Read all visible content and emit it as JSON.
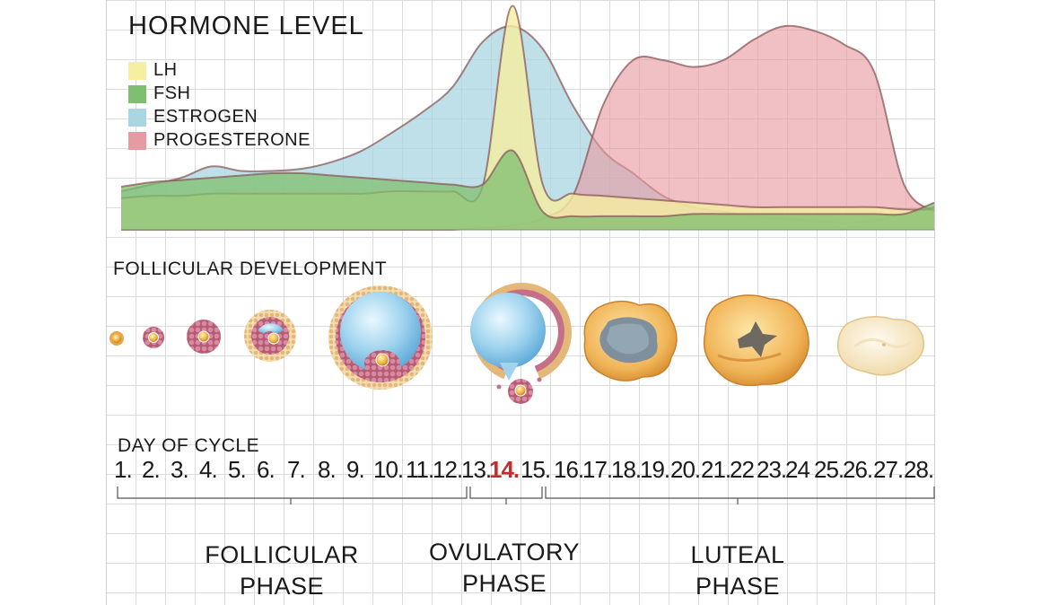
{
  "title": "HORMONE LEVEL",
  "legend": [
    {
      "label": "LH",
      "color": "#f6eea0"
    },
    {
      "label": "FSH",
      "color": "#7fbf6f"
    },
    {
      "label": "ESTROGEN",
      "color": "#a9d6e0"
    },
    {
      "label": "PROGESTERONE",
      "color": "#e79aa1"
    }
  ],
  "follicular_title": "FOLLICULAR DEVELOPMENT",
  "day_title": "DAY OF CYCLE",
  "days": [
    "1.",
    "2.",
    "3.",
    "4.",
    "5.",
    "6.",
    "7.",
    "8.",
    "9.",
    "10.",
    "11.",
    "12.",
    "13.",
    "14.",
    "15.",
    "16.",
    "17.",
    "18.",
    "19.",
    "20.",
    "21.",
    "22",
    "23.",
    "24",
    "25.",
    "26.",
    "27.",
    "28."
  ],
  "ovulation_day": "14.",
  "phases": [
    {
      "line1": "FOLLICULAR",
      "line2": "PHASE"
    },
    {
      "line1": "OVULATORY",
      "line2": "PHASE"
    },
    {
      "line1": "LUTEAL",
      "line2": "PHASE"
    }
  ],
  "chart_data": {
    "type": "area",
    "title": "HORMONE LEVEL",
    "xlabel": "DAY OF CYCLE",
    "ylabel": "",
    "x": [
      1,
      2,
      3,
      4,
      5,
      6,
      7,
      8,
      9,
      10,
      11,
      12,
      13,
      14,
      15,
      16,
      17,
      18,
      19,
      20,
      21,
      22,
      23,
      24,
      25,
      26,
      27,
      28
    ],
    "ylim": [
      0,
      100
    ],
    "series": [
      {
        "name": "ESTROGEN",
        "color": "#a9d6e0",
        "values": [
          17,
          20,
          23,
          28,
          26,
          26,
          27,
          30,
          35,
          43,
          52,
          63,
          83,
          90,
          80,
          55,
          35,
          25,
          15,
          10,
          8,
          6,
          5,
          4,
          3,
          4,
          7,
          10
        ]
      },
      {
        "name": "PROGESTERONE",
        "color": "#e79aa1",
        "values": [
          0,
          0,
          0,
          0,
          0,
          0,
          0,
          0,
          0,
          0,
          0,
          0,
          1,
          2,
          5,
          15,
          55,
          75,
          75,
          72,
          75,
          84,
          90,
          88,
          82,
          70,
          20,
          8
        ]
      },
      {
        "name": "FSH",
        "color": "#7fbf6f",
        "values": [
          19,
          21,
          22,
          23,
          24,
          25,
          25,
          24,
          23,
          22,
          21,
          20,
          20,
          35,
          8,
          6,
          6,
          6,
          6,
          7,
          7,
          7,
          7,
          7,
          7,
          7,
          7,
          12
        ]
      },
      {
        "name": "LH",
        "color": "#f6eea0",
        "values": [
          14,
          15,
          15,
          16,
          16,
          16,
          16,
          16,
          16,
          17,
          17,
          17,
          19,
          99,
          20,
          16,
          15,
          14,
          13,
          12,
          11,
          10,
          10,
          10,
          10,
          10,
          9,
          9
        ]
      }
    ]
  }
}
